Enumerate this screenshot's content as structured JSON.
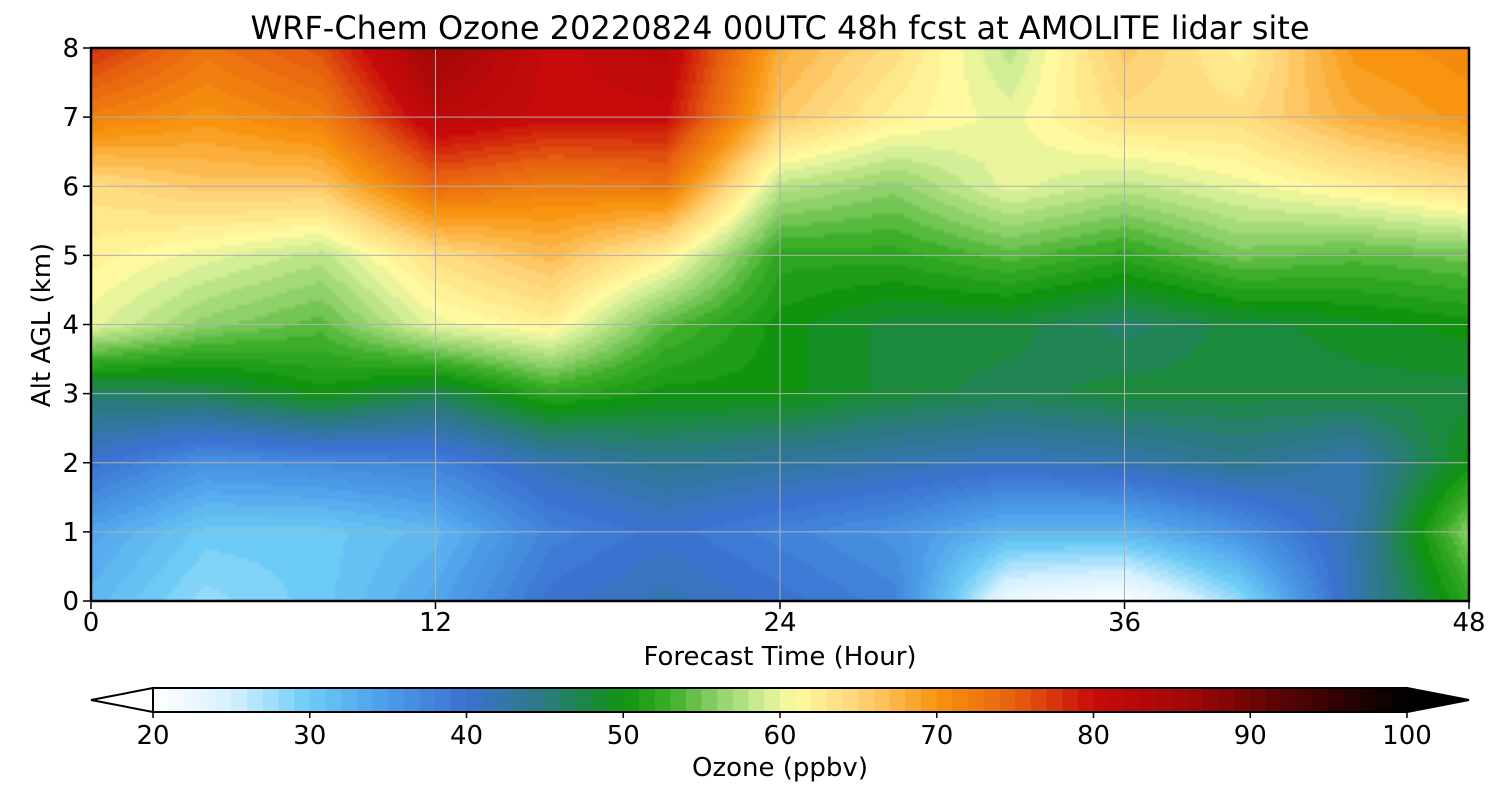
{
  "chart_data": {
    "type": "heatmap",
    "title": "WRF-Chem Ozone  20220824 00UTC 48h fcst at AMOLITE lidar site",
    "xlabel": "Forecast Time (Hour)",
    "ylabel": "Alt AGL (km)",
    "xlim": [
      0,
      48
    ],
    "ylim": [
      0,
      8
    ],
    "x_ticks": [
      0,
      12,
      24,
      36,
      48
    ],
    "y_ticks": [
      0,
      1,
      2,
      3,
      4,
      5,
      6,
      7,
      8
    ],
    "grid": true,
    "x": [
      0,
      4,
      8,
      12,
      16,
      20,
      24,
      28,
      32,
      36,
      40,
      44,
      48
    ],
    "y": [
      0,
      1,
      2,
      3,
      4,
      5,
      6,
      7,
      8
    ],
    "z": [
      [
        32,
        28,
        30,
        34,
        40,
        42,
        40,
        38,
        22,
        20,
        28,
        42,
        52
      ],
      [
        34,
        30,
        30,
        32,
        38,
        40,
        38,
        36,
        32,
        32,
        36,
        42,
        56
      ],
      [
        40,
        36,
        37,
        38,
        42,
        44,
        43,
        42,
        41,
        42,
        44,
        42,
        50
      ],
      [
        46,
        47,
        50,
        47,
        52,
        50,
        50,
        48,
        47,
        48,
        48,
        48,
        48
      ],
      [
        60,
        56,
        54,
        60,
        62,
        54,
        50,
        48,
        48,
        46,
        48,
        49,
        50
      ],
      [
        62,
        60,
        58,
        64,
        67,
        62,
        52,
        52,
        54,
        52,
        55,
        54,
        55
      ],
      [
        64,
        66,
        66,
        74,
        72,
        73,
        58,
        56,
        60,
        58,
        60,
        62,
        64
      ],
      [
        72,
        70,
        72,
        82,
        80,
        80,
        66,
        62,
        60,
        64,
        64,
        68,
        70
      ],
      [
        78,
        73,
        76,
        86,
        80,
        82,
        68,
        64,
        58,
        66,
        62,
        70,
        71
      ]
    ],
    "colorbar": {
      "label": "Ozone  (ppbv)",
      "min": 20,
      "max": 100,
      "ticks": [
        20,
        30,
        40,
        50,
        60,
        70,
        80,
        90,
        100
      ],
      "extend": "both",
      "orientation": "horizontal",
      "stops": [
        [
          20,
          "#ffffff"
        ],
        [
          25,
          "#d6f1ff"
        ],
        [
          30,
          "#6ccbf6"
        ],
        [
          35,
          "#4b9be8"
        ],
        [
          40,
          "#3b72d0"
        ],
        [
          45,
          "#2b7a80"
        ],
        [
          50,
          "#109410"
        ],
        [
          53,
          "#3cae28"
        ],
        [
          56,
          "#8ed06a"
        ],
        [
          59,
          "#d2ee96"
        ],
        [
          61,
          "#fffaa0"
        ],
        [
          65,
          "#ffd478"
        ],
        [
          70,
          "#f89410"
        ],
        [
          75,
          "#e66010"
        ],
        [
          80,
          "#c80a0a"
        ],
        [
          86,
          "#a00808"
        ],
        [
          92,
          "#580404"
        ],
        [
          100,
          "#000000"
        ]
      ]
    }
  }
}
